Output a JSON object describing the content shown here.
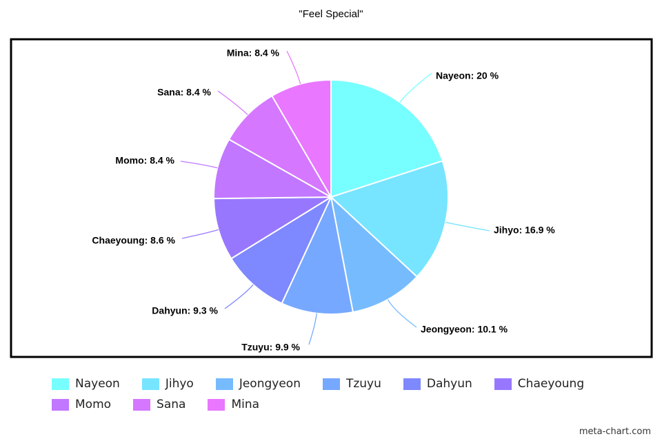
{
  "chart_data": {
    "type": "pie",
    "title": "\"Feel Special\"",
    "categories": [
      "Nayeon",
      "Jihyo",
      "Jeongyeon",
      "Tzuyu",
      "Dahyun",
      "Chaeyoung",
      "Momo",
      "Sana",
      "Mina"
    ],
    "values": [
      20,
      16.9,
      10.1,
      9.9,
      9.3,
      8.6,
      8.4,
      8.4,
      8.4
    ],
    "unit": "%",
    "colors": [
      "#77ffff",
      "#77e5ff",
      "#77bbff",
      "#77a8ff",
      "#7e88ff",
      "#9877ff",
      "#c177ff",
      "#d577ff",
      "#e977ff"
    ],
    "data_labels": [
      "Nayeon: 20 %",
      "Jihyo: 16.9 %",
      "Jeongyeon: 10.1 %",
      "Tzuyu: 9.9 %",
      "Dahyun: 9.3 %",
      "Chaeyoung: 8.6 %",
      "Momo: 8.4 %",
      "Sana: 8.4 %",
      "Mina: 8.4 %"
    ],
    "legend_placement": "bottom"
  },
  "watermark": "meta-chart.com"
}
